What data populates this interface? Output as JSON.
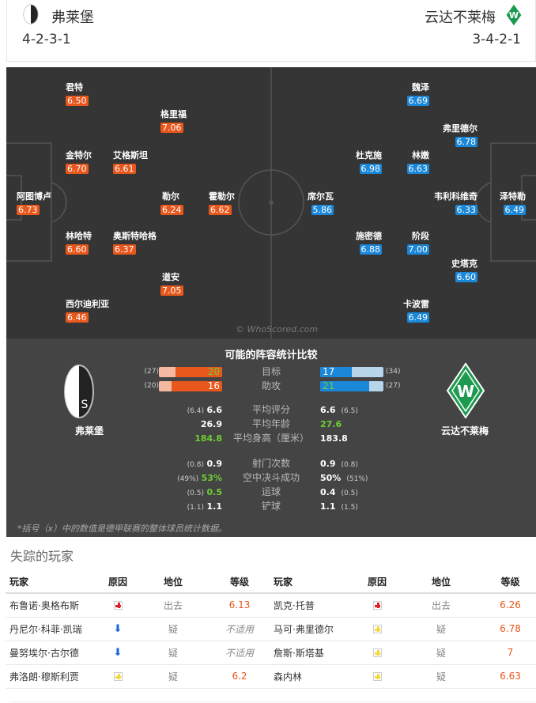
{
  "header": {
    "home": {
      "name": "弗莱堡",
      "formation": "4-2-3-1"
    },
    "away": {
      "name": "云达不莱梅",
      "formation": "3-4-2-1"
    }
  },
  "pitch": {
    "home": [
      {
        "name": "君特",
        "rating": "6.50"
      },
      {
        "name": "格里福",
        "rating": "7.06"
      },
      {
        "name": "金特尔",
        "rating": "6.70"
      },
      {
        "name": "艾格斯坦",
        "rating": "6.61"
      },
      {
        "name": "阿图博卢",
        "rating": "6.73"
      },
      {
        "name": "勒尔",
        "rating": "6.24"
      },
      {
        "name": "霍勒尔",
        "rating": "6.62"
      },
      {
        "name": "林哈特",
        "rating": "6.60"
      },
      {
        "name": "奥斯特哈格",
        "rating": "6.37"
      },
      {
        "name": "道安",
        "rating": "7.05"
      },
      {
        "name": "西尔迪利亚",
        "rating": "6.46"
      }
    ],
    "away": [
      {
        "name": "魏泽",
        "rating": "6.69"
      },
      {
        "name": "弗里德尔",
        "rating": "6.78"
      },
      {
        "name": "杜克施",
        "rating": "6.98"
      },
      {
        "name": "林嫩",
        "rating": "6.63"
      },
      {
        "name": "席尔瓦",
        "rating": "5.86"
      },
      {
        "name": "韦利科维奇",
        "rating": "6.33"
      },
      {
        "name": "泽特勒",
        "rating": "6.49"
      },
      {
        "name": "施密德",
        "rating": "6.88"
      },
      {
        "name": "阶段",
        "rating": "7.00"
      },
      {
        "name": "史塔克",
        "rating": "6.60"
      },
      {
        "name": "卡波雷",
        "rating": "6.49"
      }
    ],
    "watermark": "© WhoScored.com"
  },
  "stats": {
    "title": "可能的阵容统计比较",
    "home_name": "弗莱堡",
    "away_name": "云达不莱梅",
    "bars": [
      {
        "label": "目标",
        "home": "20",
        "home_league": "(27)",
        "home_fraction": 0.74,
        "away": "17",
        "away_league": "(34)",
        "away_fraction": 0.5
      },
      {
        "label": "助攻",
        "home": "16",
        "home_league": "(20)",
        "home_fraction": 0.8,
        "away": "21",
        "away_league": "(27)",
        "away_fraction": 0.78
      }
    ],
    "rows": [
      {
        "label": "平均评分",
        "home": "6.6",
        "home_league": "(6.4)",
        "away": "6.6",
        "away_league": "(6.5)"
      },
      {
        "label": "平均年龄",
        "home": "26.9",
        "home_league": "",
        "away": "27.6",
        "away_league": ""
      },
      {
        "label": "平均身高（厘米）",
        "home": "184.8",
        "home_league": "",
        "away": "183.8",
        "away_league": ""
      },
      {
        "label": "射门次数",
        "home": "0.9",
        "home_league": "(0.8)",
        "away": "0.9",
        "away_league": "(0.8)"
      },
      {
        "label": "空中决斗成功",
        "home": "53%",
        "home_league": "(49%)",
        "away": "50%",
        "away_league": "(51%)"
      },
      {
        "label": "运球",
        "home": "0.5",
        "home_league": "(0.5)",
        "away": "0.4",
        "away_league": "(0.5)"
      },
      {
        "label": "铲球",
        "home": "1.1",
        "home_league": "(1.1)",
        "away": "1.1",
        "away_league": "(1.5)"
      }
    ],
    "note": "*括号（x）中的数值是德甲联赛的整体球员统计数据。",
    "colors": {
      "home": "#e8571c",
      "away": "#1a87d8",
      "better": "#6fce35"
    }
  },
  "missing": {
    "title": "失踪的玩家",
    "headers": [
      "玩家",
      "原因",
      "地位",
      "等级",
      "玩家",
      "原因",
      "地位",
      "等级"
    ],
    "rows": [
      {
        "home": {
          "player": "布鲁诺·奥格布斯",
          "reason": "injury-icon",
          "status": "出去",
          "rating": "6.13"
        },
        "away": {
          "player": "凯克·托普",
          "reason": "injury-icon",
          "status": "出去",
          "rating": "6.26"
        }
      },
      {
        "home": {
          "player": "丹尼尔·科菲·凯瑞",
          "reason": "arrow-down-icon",
          "status": "疑",
          "rating": "不适用"
        },
        "away": {
          "player": "马可·弗里德尔",
          "reason": "doubtful-icon",
          "status": "疑",
          "rating": "6.78"
        }
      },
      {
        "home": {
          "player": "曼努埃尔·古尔德",
          "reason": "arrow-down-icon",
          "status": "疑",
          "rating": "不适用"
        },
        "away": {
          "player": "詹斯·斯塔基",
          "reason": "doubtful-icon",
          "status": "疑",
          "rating": "7"
        }
      },
      {
        "home": {
          "player": "弗洛朗·穆斯利贾",
          "reason": "doubtful-icon",
          "status": "疑",
          "rating": "6.2"
        },
        "away": {
          "player": "森内林",
          "reason": "doubtful-icon",
          "status": "疑",
          "rating": "6.63"
        }
      }
    ]
  }
}
